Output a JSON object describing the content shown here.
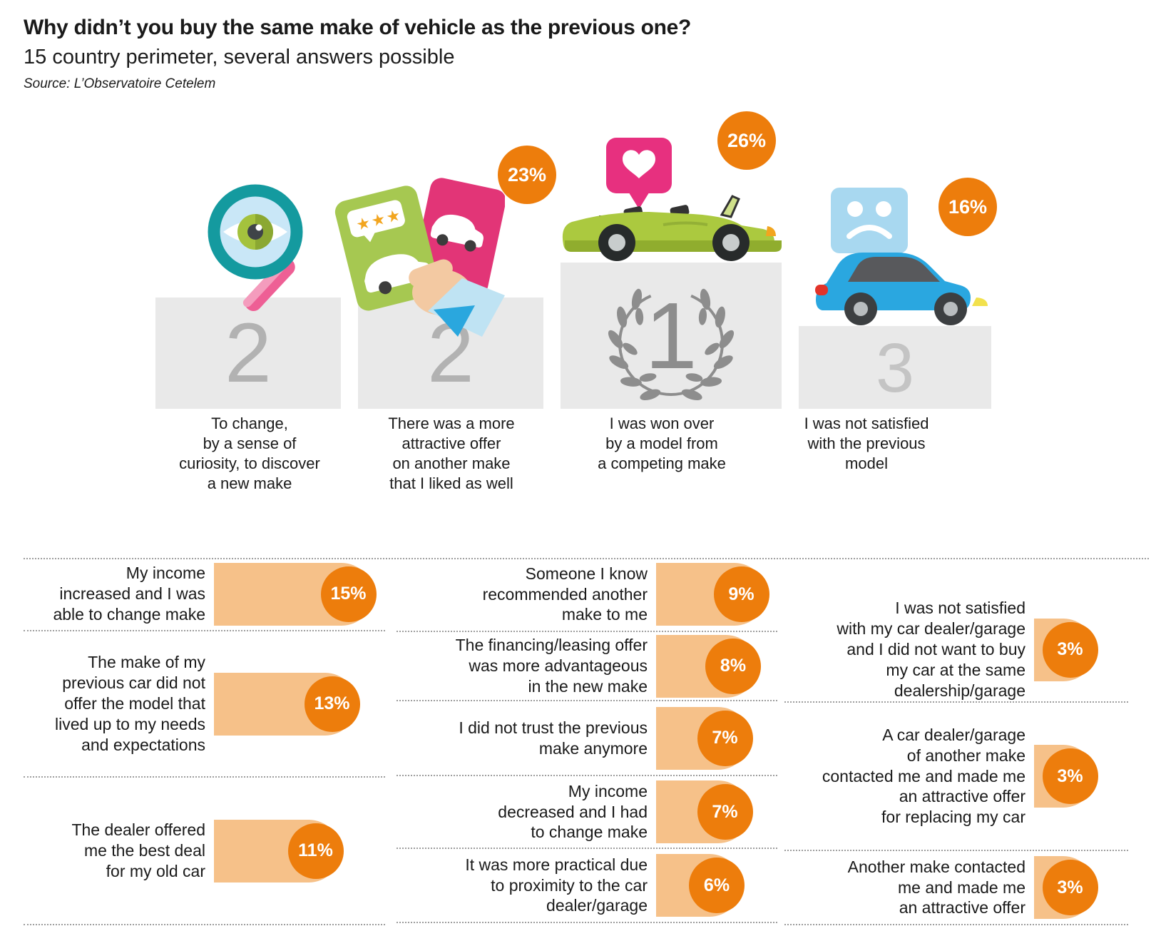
{
  "header": {
    "title": "Why didn’t you buy the same make of vehicle as the previous one?",
    "subtitle": "15 country perimeter, several answers possible",
    "source": "Source: L’Observatoire Cetelem"
  },
  "colors": {
    "accent_orange": "#ed7d0c",
    "bar_fill": "#f6c189",
    "podium_gray": "#e9e9e9"
  },
  "podium": [
    {
      "rank": "2",
      "pct": "",
      "icon": "magnifier-eye-icon",
      "caption": "To change,\nby a sense of\ncuriosity, to discover\na new make"
    },
    {
      "rank": "2",
      "pct": "23%",
      "icon": "rating-cards-hand-icon",
      "caption": "There was a more\nattractive offer\non another make\nthat I liked as well"
    },
    {
      "rank": "1",
      "pct": "26%",
      "icon": "loved-convertible-icon",
      "caption": "I was won over\nby a model from\na competing make"
    },
    {
      "rank": "3",
      "pct": "16%",
      "icon": "sad-bubble-car-icon",
      "caption": "I was not satisfied\nwith the previous\nmodel"
    }
  ],
  "rows": {
    "left": [
      {
        "label": "My income\nincreased and I was\nable to change make",
        "value": 15
      },
      {
        "label": "The make of my\nprevious car did not\noffer the model that\nlived up to my needs\nand expectations",
        "value": 13
      },
      {
        "label": "The dealer offered\nme the best deal\nfor my old car",
        "value": 11
      }
    ],
    "middle": [
      {
        "label": "Someone I know\nrecommended another\nmake to me",
        "value": 9
      },
      {
        "label": "The financing/leasing offer\nwas more advantageous\nin the new make",
        "value": 8
      },
      {
        "label": "I did not trust the previous\nmake anymore",
        "value": 7
      },
      {
        "label": "My income\ndecreased and I had\nto change make",
        "value": 7
      },
      {
        "label": "It was more practical due\nto proximity to the car\ndealer/garage",
        "value": 6
      }
    ],
    "right": [
      {
        "label": "I was not satisfied\nwith my car dealer/garage\nand I did not want to buy\nmy car at the same\ndealership/garage",
        "value": 3
      },
      {
        "label": "A car dealer/garage\nof another make\ncontacted me and made me\nan attractive offer\nfor replacing my car",
        "value": 3
      },
      {
        "label": "Another make contacted\nme and made me\nan attractive offer",
        "value": 3
      }
    ]
  },
  "chart_data": {
    "type": "bar",
    "title": "Why didn’t you buy the same make of vehicle as the previous one?",
    "subtitle": "15 country perimeter, several answers possible",
    "source": "Source: L’Observatoire Cetelem",
    "unit": "%",
    "podium": [
      {
        "rank": "2",
        "label": "To change, by a sense of curiosity, to discover a new make",
        "value": null
      },
      {
        "rank": "2",
        "label": "There was a more attractive offer on another make that I liked as well",
        "value": 23
      },
      {
        "rank": "1",
        "label": "I was won over by a model from a competing make",
        "value": 26
      },
      {
        "rank": "3",
        "label": "I was not satisfied with the previous model",
        "value": 16
      }
    ],
    "categories": [
      "My income increased and I was able to change make",
      "The make of my previous car did not offer the model that lived up to my needs and expectations",
      "The dealer offered me the best deal for my old car",
      "Someone I know recommended another make to me",
      "The financing/leasing offer was more advantageous in the new make",
      "I did not trust the previous make anymore",
      "My income decreased and I had to change make",
      "It was more practical due to proximity to the car dealer/garage",
      "I was not satisfied with my car dealer/garage and I did not want to buy my car at the same dealership/garage",
      "A car dealer/garage of another make contacted me and made me an attractive offer for replacing my car",
      "Another make contacted me and made me an attractive offer"
    ],
    "values": [
      15,
      13,
      11,
      9,
      8,
      7,
      7,
      6,
      3,
      3,
      3
    ]
  }
}
